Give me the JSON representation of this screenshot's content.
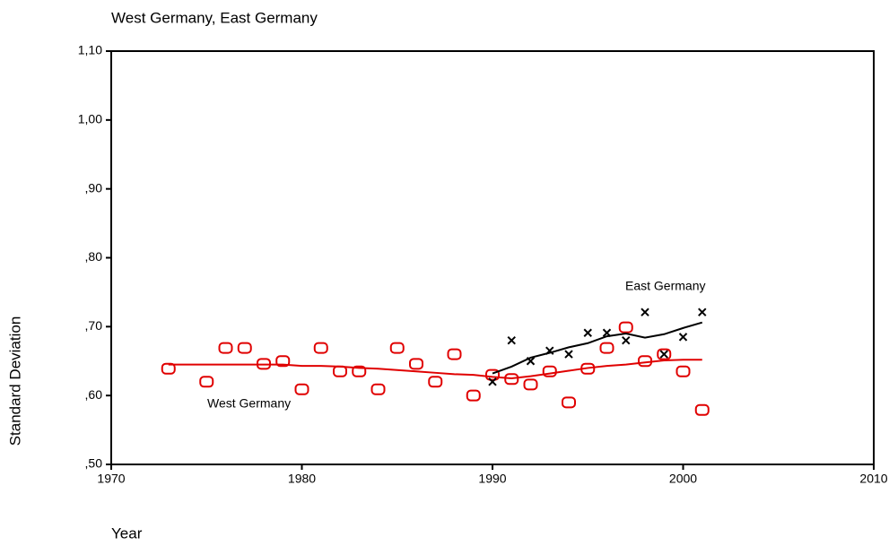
{
  "chart_data": {
    "type": "scatter",
    "title": "West Germany, East Germany",
    "x_label": "Year",
    "y_label": "Standard Deviation",
    "xlim": [
      1970,
      2010
    ],
    "xticks": [
      1970,
      1980,
      1990,
      2000,
      2010
    ],
    "ylim": [
      0.5,
      1.1
    ],
    "yticks": [
      {
        "value": 0.5,
        "label": ",50"
      },
      {
        "value": 0.6,
        "label": ",60"
      },
      {
        "value": 0.7,
        "label": ",70"
      },
      {
        "value": 0.8,
        "label": ",80"
      },
      {
        "value": 0.9,
        "label": ",90"
      },
      {
        "value": 1.0,
        "label": "1,00"
      },
      {
        "value": 1.1,
        "label": "1,10"
      }
    ],
    "series": [
      {
        "name": "West Germany",
        "color": "#e00000",
        "marker": "square",
        "x": [
          1973,
          1975,
          1976,
          1977,
          1978,
          1979,
          1980,
          1981,
          1982,
          1983,
          1984,
          1985,
          1986,
          1987,
          1988,
          1989,
          1990,
          1991,
          1992,
          1993,
          1994,
          1995,
          1996,
          1997,
          1998,
          1999,
          2000,
          2001
        ],
        "values": [
          0.639,
          0.62,
          0.669,
          0.669,
          0.646,
          0.65,
          0.609,
          0.669,
          0.635,
          0.635,
          0.609,
          0.669,
          0.646,
          0.62,
          0.66,
          0.6,
          0.63,
          0.624,
          0.616,
          0.635,
          0.59,
          0.639,
          0.669,
          0.699,
          0.65,
          0.66,
          0.635,
          0.579
        ],
        "trend": [
          0.645,
          0.645,
          0.645,
          0.645,
          0.645,
          0.645,
          0.643,
          0.643,
          0.642,
          0.64,
          0.639,
          0.637,
          0.635,
          0.633,
          0.631,
          0.63,
          0.627,
          0.625,
          0.628,
          0.632,
          0.636,
          0.64,
          0.643,
          0.645,
          0.648,
          0.651,
          0.652,
          0.652
        ]
      },
      {
        "name": "East Germany",
        "color": "#000000",
        "marker": "x",
        "x": [
          1990,
          1991,
          1992,
          1993,
          1994,
          1995,
          1996,
          1997,
          1998,
          1999,
          2000,
          2001
        ],
        "values": [
          0.62,
          0.68,
          0.65,
          0.665,
          0.66,
          0.691,
          0.691,
          0.68,
          0.721,
          0.66,
          0.685,
          0.721
        ],
        "trend": [
          0.632,
          0.642,
          0.655,
          0.662,
          0.67,
          0.676,
          0.686,
          0.69,
          0.684,
          0.689,
          0.698,
          0.706
        ]
      }
    ]
  }
}
